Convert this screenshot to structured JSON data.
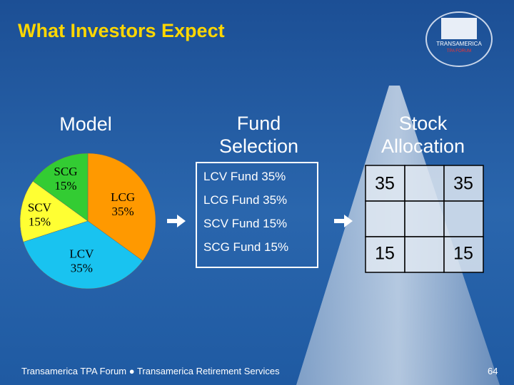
{
  "header": {
    "title": "What Investors Expect"
  },
  "logo": {
    "name": "TRANSAMERICA",
    "subname": "TPA FORUM"
  },
  "model": {
    "heading": "Model"
  },
  "chart_data": {
    "type": "pie",
    "categories": [
      "LCG",
      "LCV",
      "SCV",
      "SCG"
    ],
    "values": [
      35,
      35,
      15,
      15
    ],
    "value_labels": [
      "35%",
      "35%",
      "15%",
      "15%"
    ],
    "colors": [
      "#ff9900",
      "#19c3f0",
      "#ffff33",
      "#33cc33"
    ]
  },
  "fund_selection": {
    "heading": "Fund Selection",
    "items": [
      "LCV Fund  35%",
      "LCG Fund  35%",
      "SCV Fund  15%",
      "SCG Fund  15%"
    ]
  },
  "stock_allocation": {
    "heading": "Stock Allocation",
    "values": [
      35,
      35,
      15,
      15
    ]
  },
  "footer": {
    "text": "Transamerica TPA Forum  ●  Transamerica Retirement Services",
    "page": "64"
  }
}
